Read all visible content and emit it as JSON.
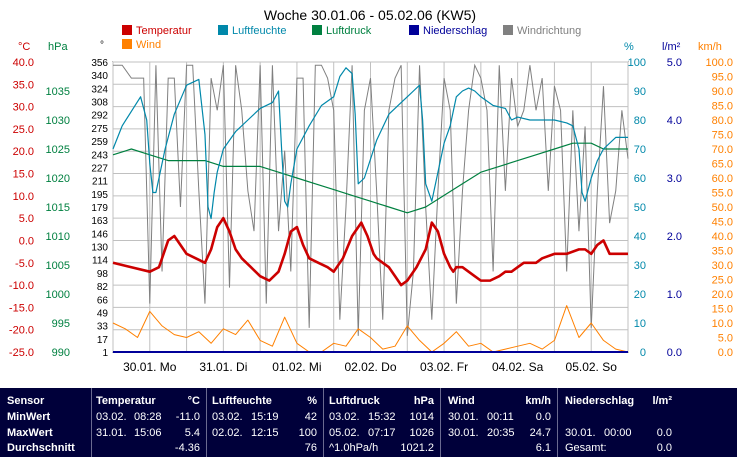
{
  "chart_data": {
    "type": "line",
    "title": "Woche 30.01.06 - 05.02.06 (KW5)",
    "legend": [
      {
        "name": "Temperatur",
        "color": "#cc0000"
      },
      {
        "name": "Luftfeuchte",
        "color": "#0088aa"
      },
      {
        "name": "Luftdruck",
        "color": "#008040"
      },
      {
        "name": "Niederschlag",
        "color": "#000099"
      },
      {
        "name": "Windrichtung",
        "color": "#808080"
      },
      {
        "name": "Wind",
        "color": "#ff8000"
      }
    ],
    "legend_placement": "top",
    "grid": true,
    "axes": {
      "temp": {
        "unit": "°C",
        "range": [
          -25,
          40
        ],
        "color": "#cc0000",
        "ticks": [
          "40.0",
          "35.0",
          "30.0",
          "25.0",
          "20.0",
          "15.0",
          "10.0",
          "5.0",
          "0.0",
          "-5.0",
          "-10.0",
          "-15.0",
          "-20.0",
          "-25.0"
        ]
      },
      "pressure": {
        "unit": "hPa",
        "range": [
          990,
          1040
        ],
        "color": "#008040",
        "ticks": [
          "1035",
          "1030",
          "1025",
          "1020",
          "1015",
          "1010",
          "1005",
          "1000",
          "995",
          "990"
        ]
      },
      "winddir": {
        "unit": "°",
        "range": [
          0,
          360
        ],
        "color": "#000000",
        "ticks": [
          "356",
          "340",
          "324",
          "308",
          "292",
          "275",
          "259",
          "243",
          "227",
          "211",
          "195",
          "179",
          "163",
          "146",
          "130",
          "114",
          "98",
          "82",
          "66",
          "49",
          "33",
          "17",
          "1"
        ]
      },
      "humidity": {
        "unit": "%",
        "range": [
          0,
          100
        ],
        "color": "#0088aa",
        "ticks": [
          "100",
          "90",
          "80",
          "70",
          "60",
          "50",
          "40",
          "30",
          "20",
          "10",
          "0"
        ]
      },
      "rain": {
        "unit": "l/m²",
        "range": [
          0,
          5
        ],
        "color": "#000099",
        "ticks": [
          "5.0",
          "4.0",
          "3.0",
          "2.0",
          "1.0",
          "0.0"
        ]
      },
      "wind": {
        "unit": "km/h",
        "range": [
          0,
          100
        ],
        "color": "#ff8000",
        "ticks": [
          "100.0",
          "95.0",
          "90.0",
          "85.0",
          "80.0",
          "75.0",
          "70.0",
          "65.0",
          "60.0",
          "55.0",
          "50.0",
          "45.0",
          "40.0",
          "35.0",
          "30.0",
          "25.0",
          "20.0",
          "15.0",
          "10.0",
          "5.0",
          "0.0"
        ]
      }
    },
    "x_labels": [
      "30.01. Mo",
      "31.01. Di",
      "01.02. Mi",
      "02.02. Do",
      "03.02. Fr",
      "04.02. Sa",
      "05.02. So"
    ],
    "x_range_hours": [
      0,
      168
    ],
    "series": [
      {
        "name": "Temperatur",
        "axis": "temp",
        "x": [
          0,
          6,
          12,
          15,
          18,
          20,
          24,
          27,
          30,
          32,
          34,
          36,
          38,
          40,
          42,
          45,
          48,
          51,
          54,
          56,
          58,
          60,
          62,
          64,
          67,
          70,
          72,
          75,
          78,
          81,
          83,
          84,
          85,
          86,
          88,
          90,
          92,
          94,
          96,
          99,
          102,
          104,
          106,
          108,
          110,
          111,
          112,
          114,
          116,
          118,
          120,
          123,
          126,
          128,
          130,
          132,
          134,
          136,
          138,
          140,
          144,
          148,
          152,
          154,
          156,
          158,
          160,
          162,
          164,
          166,
          168
        ],
        "y": [
          -5,
          -6,
          -7,
          -6,
          0,
          1,
          -3,
          -4,
          -5,
          -2,
          3,
          5,
          2,
          -2,
          -4,
          -6,
          -8,
          -9,
          -7,
          -3,
          2,
          3,
          -1,
          -4,
          -5,
          -6,
          -7,
          -4,
          1,
          4,
          1,
          -1,
          -3,
          -4,
          -5,
          -6,
          -8,
          -10,
          -9,
          -6,
          -2,
          4,
          2,
          -3,
          -6,
          -7,
          -6,
          -6,
          -7,
          -8,
          -9,
          -9,
          -8,
          -7,
          -7,
          -6,
          -5,
          -5,
          -5,
          -4,
          -3,
          -3,
          -2,
          -2,
          -3,
          -1,
          0,
          -3,
          -3,
          -3,
          -3
        ]
      },
      {
        "name": "Luftfeuchte",
        "axis": "humidity",
        "x": [
          0,
          3,
          6,
          9,
          11,
          12,
          13,
          14,
          15,
          17,
          20,
          24,
          26,
          28,
          30,
          31,
          32,
          33,
          34,
          36,
          40,
          44,
          48,
          52,
          54,
          55,
          56,
          57,
          58,
          60,
          64,
          68,
          72,
          74,
          76,
          78,
          79,
          80,
          82,
          86,
          90,
          94,
          96,
          98,
          100,
          101,
          102,
          104,
          106,
          108,
          110,
          112,
          114,
          116,
          118,
          120,
          124,
          128,
          130,
          132,
          136,
          140,
          144,
          148,
          150,
          152,
          153,
          154,
          156,
          158,
          160,
          164,
          168
        ],
        "y": [
          70,
          78,
          83,
          88,
          80,
          65,
          55,
          55,
          60,
          70,
          82,
          92,
          93,
          94,
          75,
          50,
          46,
          55,
          62,
          70,
          76,
          80,
          84,
          86,
          90,
          70,
          52,
          50,
          58,
          70,
          78,
          85,
          88,
          95,
          98,
          96,
          82,
          58,
          60,
          73,
          82,
          86,
          88,
          90,
          92,
          80,
          58,
          52,
          62,
          72,
          78,
          88,
          90,
          91,
          90,
          88,
          85,
          84,
          80,
          81,
          80,
          80,
          80,
          79,
          78,
          70,
          55,
          52,
          60,
          66,
          70,
          74,
          74
        ]
      },
      {
        "name": "Luftdruck",
        "axis": "pressure",
        "x": [
          0,
          6,
          12,
          18,
          24,
          30,
          36,
          42,
          48,
          54,
          60,
          66,
          72,
          78,
          84,
          90,
          96,
          102,
          108,
          114,
          120,
          126,
          132,
          138,
          144,
          150,
          156,
          160,
          168
        ],
        "y": [
          1024,
          1025,
          1024,
          1023,
          1023,
          1023,
          1022,
          1022,
          1022,
          1021,
          1020,
          1019,
          1018,
          1017,
          1016,
          1015,
          1014,
          1015,
          1017,
          1019,
          1021,
          1022,
          1023,
          1024,
          1025,
          1026,
          1026,
          1025,
          1025
        ]
      },
      {
        "name": "Wind",
        "axis": "wind",
        "x": [
          0,
          4,
          8,
          12,
          16,
          20,
          24,
          28,
          32,
          36,
          40,
          44,
          48,
          52,
          56,
          60,
          64,
          68,
          72,
          76,
          80,
          84,
          88,
          92,
          96,
          100,
          104,
          108,
          112,
          116,
          120,
          124,
          128,
          132,
          136,
          140,
          144,
          148,
          152,
          156,
          160,
          164,
          168
        ],
        "y": [
          10,
          8,
          5,
          14,
          9,
          6,
          5,
          7,
          3,
          8,
          6,
          11,
          4,
          2,
          12,
          3,
          0,
          0,
          3,
          2,
          8,
          5,
          1,
          2,
          9,
          4,
          0,
          3,
          7,
          2,
          3,
          0,
          1,
          2,
          3,
          1,
          4,
          16,
          5,
          10,
          4,
          1,
          0
        ]
      },
      {
        "name": "Niederschlag",
        "axis": "rain",
        "x": [
          0,
          168
        ],
        "y": [
          0,
          0
        ]
      }
    ],
    "winddir": {
      "name": "Windrichtung",
      "axis": "winddir",
      "x": [
        0,
        3,
        6,
        10,
        12,
        14,
        16,
        18,
        20,
        22,
        24,
        26,
        28,
        30,
        32,
        34,
        36,
        38,
        40,
        42,
        44,
        46,
        48,
        50,
        52,
        54,
        56,
        58,
        60,
        62,
        64,
        66,
        68,
        70,
        72,
        74,
        76,
        78,
        80,
        82,
        84,
        86,
        88,
        90,
        92,
        94,
        96,
        98,
        100,
        102,
        104,
        106,
        108,
        110,
        112,
        114,
        116,
        118,
        120,
        122,
        124,
        126,
        128,
        130,
        132,
        134,
        136,
        138,
        140,
        142,
        144,
        146,
        148,
        150,
        152,
        154,
        156,
        158,
        160,
        162,
        164,
        166,
        168
      ],
      "y": [
        356,
        356,
        340,
        340,
        60,
        356,
        100,
        340,
        340,
        180,
        356,
        356,
        200,
        60,
        340,
        300,
        356,
        80,
        356,
        300,
        200,
        150,
        356,
        60,
        356,
        150,
        250,
        100,
        340,
        340,
        30,
        356,
        356,
        340,
        300,
        40,
        180,
        356,
        20,
        300,
        340,
        200,
        40,
        300,
        340,
        356,
        20,
        100,
        356,
        180,
        40,
        200,
        340,
        300,
        60,
        200,
        300,
        356,
        340,
        300,
        100,
        356,
        200,
        340,
        280,
        300,
        356,
        300,
        340,
        200,
        330,
        300,
        100,
        300,
        150,
        280,
        30,
        200,
        330,
        160,
        200,
        300,
        240
      ]
    }
  },
  "table": {
    "headers": {
      "sensor": "Sensor",
      "temp": "Temperatur",
      "temp_unit": "°C",
      "hum": "Luftfeuchte",
      "hum_unit": "%",
      "press": "Luftdruck",
      "press_unit": "hPa",
      "wind": "Wind",
      "wind_unit": "km/h",
      "rain": "Niederschlag",
      "rain_unit": "l/m²"
    },
    "rows": [
      {
        "label": "MinWert",
        "temp_date": "03.02.",
        "temp_time": "08:28",
        "temp_val": "-11.0",
        "hum_date": "03.02.",
        "hum_time": "15:19",
        "hum_val": "42",
        "press_date": "03.02.",
        "press_time": "15:32",
        "press_val": "1014",
        "wind_date": "30.01.",
        "wind_time": "00:11",
        "wind_val": "0.0",
        "rain_date": "",
        "rain_time": "",
        "rain_val": ""
      },
      {
        "label": "MaxWert",
        "temp_date": "31.01.",
        "temp_time": "15:06",
        "temp_val": "5.4",
        "hum_date": "02.02.",
        "hum_time": "12:15",
        "hum_val": "100",
        "press_date": "05.02.",
        "press_time": "07:17",
        "press_val": "1026",
        "wind_date": "30.01.",
        "wind_time": "20:35",
        "wind_val": "24.7",
        "rain_date": "30.01.",
        "rain_time": "00:00",
        "rain_val": "0.0"
      },
      {
        "label": "Durchschnitt",
        "temp_date": "",
        "temp_time": "",
        "temp_val": "-4.36",
        "hum_date": "",
        "hum_time": "",
        "hum_val": "76",
        "press_date": "^1.0hPa/h",
        "press_time": "",
        "press_val": "1021.2",
        "wind_date": "",
        "wind_time": "",
        "wind_val": "6.1",
        "rain_date": "Gesamt:",
        "rain_time": "",
        "rain_val": "0.0"
      }
    ]
  }
}
